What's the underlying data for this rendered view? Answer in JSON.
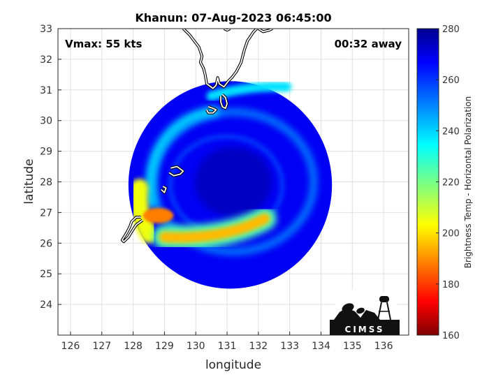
{
  "chart_data": {
    "type": "heatmap",
    "title": "Khanun: 07-Aug-2023 06:45:00",
    "xlabel": "longitude",
    "ylabel": "latitude",
    "xlim": [
      125.6,
      136.8
    ],
    "ylim": [
      23.0,
      33.0
    ],
    "xticks": [
      "126",
      "127",
      "128",
      "129",
      "130",
      "131",
      "132",
      "133",
      "134",
      "135",
      "136"
    ],
    "yticks": [
      "24",
      "25",
      "26",
      "27",
      "28",
      "29",
      "30",
      "31",
      "32",
      "33"
    ],
    "grid": true,
    "annotations": {
      "vmax": "Vmax: 55 kts",
      "away": "00:32 away"
    },
    "colorbar": {
      "label": "Brightness Temp - Horizontal Polarization",
      "range": [
        160,
        280
      ],
      "ticks": [
        "160",
        "180",
        "200",
        "220",
        "240",
        "260",
        "280"
      ],
      "colormap": "jet"
    },
    "swath": {
      "center_lon": 131.1,
      "center_lat": 27.9,
      "radius_deg_lon": 3.25,
      "background_temp": 268
    },
    "features": [
      {
        "name": "eye-warm-core",
        "lon": 131.2,
        "lat": 28.0,
        "temp": 274
      },
      {
        "name": "rainband-south-strong",
        "lon_range": [
          129.0,
          132.2
        ],
        "lat": 26.2,
        "temp": 195
      },
      {
        "name": "rainband-southwest",
        "lon": 128.8,
        "lat": 26.9,
        "temp": 188
      },
      {
        "name": "rainband-west",
        "lon": 128.2,
        "lat_range": [
          26.3,
          27.8
        ],
        "temp": 205
      },
      {
        "name": "eyewall-ring",
        "lon": 131.2,
        "lat": 28.0,
        "temp": 245
      },
      {
        "name": "rainband-north",
        "lon_range": [
          130.5,
          132.9
        ],
        "lat": 30.9,
        "temp": 238
      }
    ],
    "coastlines": [
      {
        "name": "kyushu",
        "lon_lat": [
          [
            129.6,
            33.0
          ],
          [
            129.8,
            32.8
          ],
          [
            129.95,
            32.6
          ],
          [
            130.1,
            32.4
          ],
          [
            130.2,
            32.1
          ],
          [
            130.15,
            31.9
          ],
          [
            130.25,
            31.7
          ],
          [
            130.3,
            31.5
          ],
          [
            130.35,
            31.2
          ],
          [
            130.55,
            31.05
          ],
          [
            130.65,
            31.15
          ],
          [
            130.7,
            31.4
          ],
          [
            130.75,
            31.2
          ],
          [
            130.9,
            31.1
          ],
          [
            131.05,
            31.3
          ],
          [
            131.15,
            31.4
          ],
          [
            131.3,
            31.6
          ],
          [
            131.45,
            31.9
          ],
          [
            131.55,
            32.3
          ],
          [
            131.65,
            32.6
          ],
          [
            131.85,
            32.9
          ],
          [
            131.95,
            33.0
          ]
        ]
      },
      {
        "name": "tanegashima",
        "lon_lat": [
          [
            130.85,
            30.85
          ],
          [
            130.95,
            30.75
          ],
          [
            131.0,
            30.55
          ],
          [
            130.95,
            30.4
          ],
          [
            130.85,
            30.45
          ],
          [
            130.8,
            30.6
          ],
          [
            130.8,
            30.8
          ]
        ]
      },
      {
        "name": "yakushima",
        "lon_lat": [
          [
            130.4,
            30.45
          ],
          [
            130.55,
            30.4
          ],
          [
            130.65,
            30.35
          ],
          [
            130.55,
            30.25
          ],
          [
            130.4,
            30.25
          ],
          [
            130.35,
            30.35
          ]
        ]
      },
      {
        "name": "amami",
        "lon_lat": [
          [
            129.2,
            28.45
          ],
          [
            129.4,
            28.5
          ],
          [
            129.6,
            28.35
          ],
          [
            129.5,
            28.25
          ],
          [
            129.3,
            28.2
          ],
          [
            129.15,
            28.3
          ]
        ]
      },
      {
        "name": "tokunoshima",
        "lon_lat": [
          [
            128.95,
            27.85
          ],
          [
            129.05,
            27.8
          ],
          [
            129.0,
            27.65
          ],
          [
            128.9,
            27.75
          ]
        ]
      },
      {
        "name": "okinawa",
        "lon_lat": [
          [
            128.25,
            26.85
          ],
          [
            128.1,
            26.85
          ],
          [
            127.95,
            26.7
          ],
          [
            127.9,
            26.55
          ],
          [
            127.8,
            26.35
          ],
          [
            127.65,
            26.1
          ],
          [
            127.7,
            26.05
          ],
          [
            127.85,
            26.2
          ],
          [
            128.0,
            26.45
          ],
          [
            128.1,
            26.6
          ],
          [
            128.3,
            26.75
          ]
        ]
      },
      {
        "name": "kii-fragment",
        "lon_lat": [
          [
            132.0,
            33.0
          ],
          [
            132.15,
            32.9
          ],
          [
            132.35,
            32.95
          ],
          [
            132.45,
            33.0
          ]
        ]
      },
      {
        "name": "shikoku-fragment",
        "lon_lat": [
          [
            130.9,
            33.0
          ],
          [
            131.0,
            32.95
          ],
          [
            131.1,
            33.0
          ]
        ]
      }
    ]
  },
  "logo": {
    "text": "CIMSS"
  }
}
